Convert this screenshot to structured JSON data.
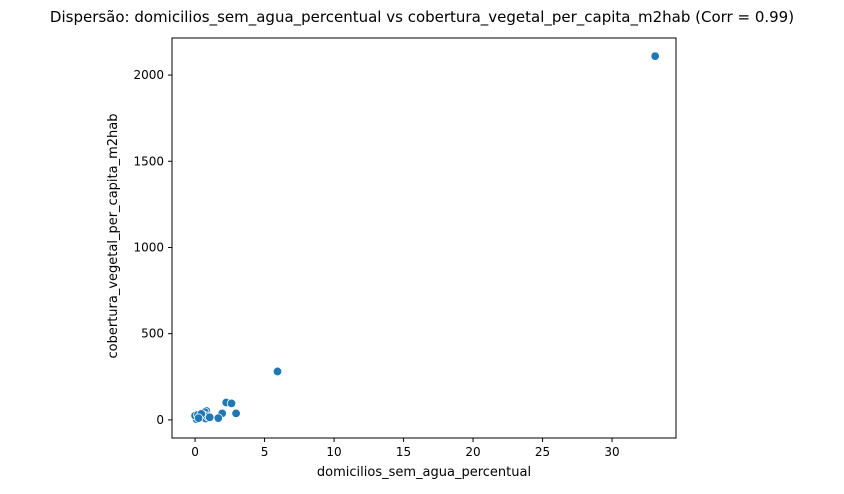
{
  "chart_data": {
    "type": "scatter",
    "title": "Dispersão: domicilios_sem_agua_percentual vs cobertura_vegetal_per_capita_m2hab (Corr = 0.99)",
    "xlabel": "domicilios_sem_agua_percentual",
    "ylabel": "cobertura_vegetal_per_capita_m2hab",
    "xlim": [
      -1.66,
      34.6
    ],
    "ylim": [
      -105,
      2215
    ],
    "xticks": [
      0,
      5,
      10,
      15,
      20,
      25,
      30
    ],
    "yticks": [
      0,
      500,
      1000,
      1500,
      2000
    ],
    "grid": false,
    "point_color": "#1f77b4",
    "points": [
      {
        "x": 33.1,
        "y": 2110
      },
      {
        "x": 5.93,
        "y": 281
      },
      {
        "x": 2.24,
        "y": 101
      },
      {
        "x": 2.62,
        "y": 96
      },
      {
        "x": 2.95,
        "y": 38
      },
      {
        "x": 1.95,
        "y": 38
      },
      {
        "x": 1.67,
        "y": 10
      },
      {
        "x": 0.81,
        "y": 52
      },
      {
        "x": 0.7,
        "y": 45
      },
      {
        "x": 0.1,
        "y": 4
      },
      {
        "x": 0.0,
        "y": 25
      },
      {
        "x": 0.2,
        "y": 30
      },
      {
        "x": 0.35,
        "y": 18
      },
      {
        "x": 0.5,
        "y": 12
      },
      {
        "x": 0.6,
        "y": 28
      },
      {
        "x": 0.75,
        "y": 8
      },
      {
        "x": 0.9,
        "y": 20
      },
      {
        "x": 1.05,
        "y": 15
      },
      {
        "x": 0.45,
        "y": 35
      },
      {
        "x": 0.25,
        "y": 10
      }
    ]
  }
}
